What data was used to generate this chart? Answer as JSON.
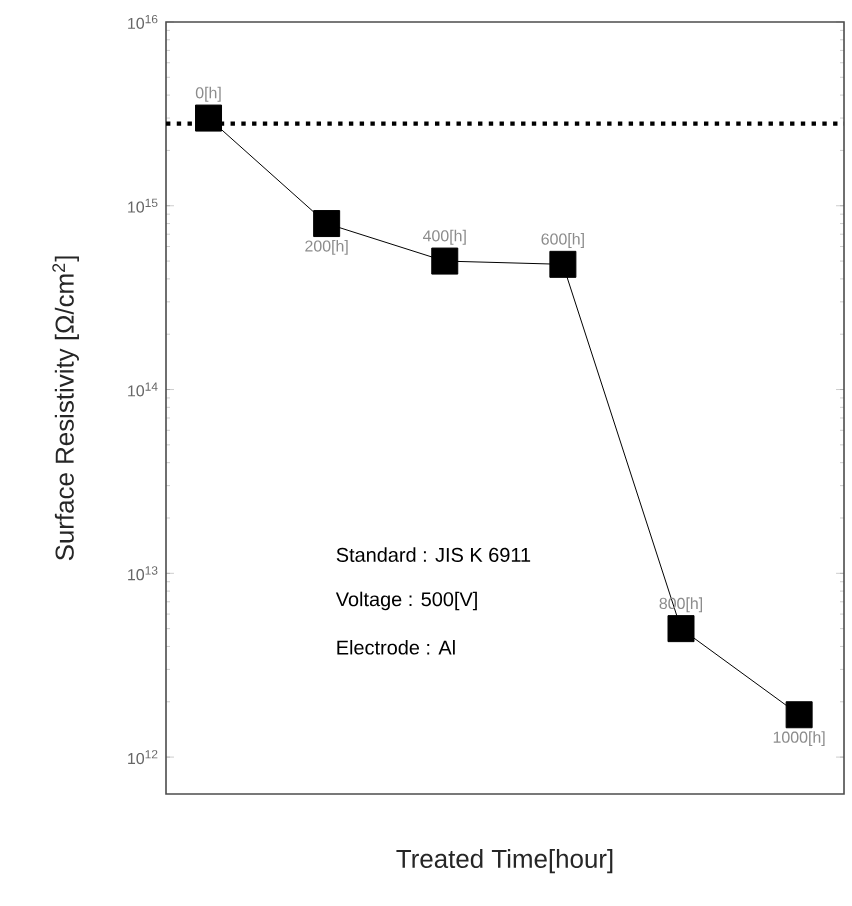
{
  "chart_data": {
    "type": "line",
    "xlabel": "Treated Time[hour]",
    "ylabel": "Surface Resistivity [Ω/cm$^{2}$]",
    "categories": [
      null,
      null,
      null,
      null,
      null,
      null
    ],
    "tick_labels": "y",
    "log": "y",
    "marker": "square",
    "ylim": [
      630000000000.0,
      1e+16
    ],
    "yticks": [
      {
        "value": 1000000000000.0,
        "label": "10$^{12}$"
      },
      {
        "value": 10000000000000.0,
        "label": "10$^{13}$"
      },
      {
        "value": 100000000000000.0,
        "label": "10$^{14}$"
      },
      {
        "value": 1000000000000000.0,
        "label": "10$^{15}$"
      },
      {
        "value": 1e+16,
        "label": "10$^{16}$"
      }
    ],
    "series": [
      {
        "color": "#000000",
        "values": [
          3000000000000000.0,
          800000000000000.0,
          500000000000000.0,
          480000000000000.0,
          5000000000000.0,
          1700000000000.0
        ]
      }
    ],
    "ref_lines": [
      {
        "axis": "y",
        "value": 2800000000000000.0,
        "color": "#000000",
        "line_style": "dotted"
      }
    ],
    "annotations": [
      {
        "text": "0[h]",
        "y": 3000000000000000.0
      },
      {
        "text": "200[h]",
        "y": 800000000000000.0
      },
      {
        "text": "400[h]",
        "y": 500000000000000.0
      },
      {
        "text": "600[h]",
        "y": 480000000000000.0
      },
      {
        "text": "800[h]",
        "y": 5000000000000.0
      },
      {
        "text": "1000[h]",
        "y": 1700000000000.0
      },
      "Standard : JIS K 6911",
      "Voltage : 500[V]",
      "Electrode : Al"
    ]
  }
}
